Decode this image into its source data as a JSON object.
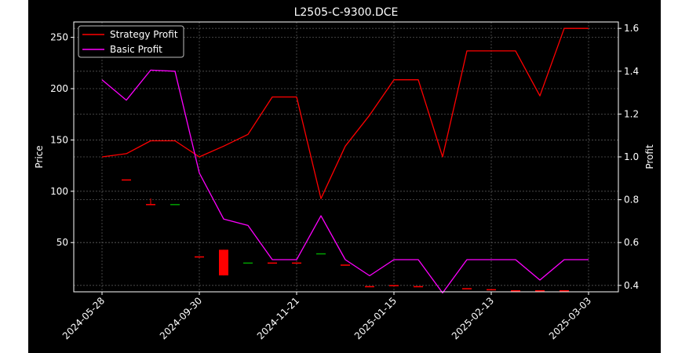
{
  "chart_data": {
    "type": "line+candlestick",
    "title": "L2505-C-9300.DCE",
    "xlabel": "",
    "ylabel_left": "Price",
    "ylabel_right": "Profit",
    "x_tick_labels": [
      "2024-05-28",
      "2024-09-30",
      "2024-11-21",
      "2025-01-15",
      "2025-02-13",
      "2025-03-03"
    ],
    "y_left_ticks": [
      50,
      100,
      150,
      200,
      250
    ],
    "y_right_ticks": [
      0.4,
      0.6,
      0.8,
      1.0,
      1.2,
      1.4,
      1.6
    ],
    "ylim_left": [
      2,
      265
    ],
    "ylim_right": [
      0.37,
      1.63
    ],
    "grid": true,
    "legend_position": "top-left",
    "n_points": 21,
    "x_tick_indices": [
      0,
      4,
      8,
      12,
      16,
      20
    ],
    "series": [
      {
        "name": "Strategy Profit",
        "color": "#ff0000",
        "axis": "right",
        "values": [
          1.0,
          1.015,
          1.075,
          1.075,
          1.0,
          1.05,
          1.105,
          1.28,
          1.28,
          0.805,
          1.05,
          1.195,
          1.36,
          1.36,
          1.0,
          1.495,
          1.495,
          1.495,
          1.285,
          1.6,
          1.6
        ]
      },
      {
        "name": "Basic Profit",
        "color": "#ff00ff",
        "axis": "right",
        "values": [
          1.36,
          1.265,
          1.405,
          1.4,
          0.925,
          0.71,
          0.68,
          0.52,
          0.52,
          0.725,
          0.52,
          0.445,
          0.52,
          0.52,
          0.365,
          0.52,
          0.52,
          0.52,
          0.425,
          0.52,
          0.52
        ]
      }
    ],
    "candles": [
      {
        "i": 1,
        "open": 111,
        "high": 111,
        "low": 111,
        "close": 111,
        "color": "#ff0000"
      },
      {
        "i": 2,
        "open": 87,
        "high": 93,
        "low": 87,
        "close": 87,
        "color": "#ff0000"
      },
      {
        "i": 3,
        "open": 87,
        "high": 87,
        "low": 87,
        "close": 87,
        "color": "#00a000"
      },
      {
        "i": 4,
        "open": 36,
        "high": 36,
        "low": 36,
        "close": 36,
        "color": "#ff0000"
      },
      {
        "i": 5,
        "open": 43,
        "high": 43,
        "low": 18,
        "close": 18,
        "color": "#ff0000"
      },
      {
        "i": 6,
        "open": 30,
        "high": 30,
        "low": 30,
        "close": 30,
        "color": "#00a000"
      },
      {
        "i": 7,
        "open": 30,
        "high": 30,
        "low": 30,
        "close": 30,
        "color": "#ff0000"
      },
      {
        "i": 8,
        "open": 30,
        "high": 30,
        "low": 30,
        "close": 30,
        "color": "#ff0000"
      },
      {
        "i": 9,
        "open": 39,
        "high": 39,
        "low": 39,
        "close": 39,
        "color": "#00a000"
      },
      {
        "i": 10,
        "open": 28,
        "high": 28,
        "low": 28,
        "close": 28,
        "color": "#ff0000"
      },
      {
        "i": 11,
        "open": 7,
        "high": 7,
        "low": 7,
        "close": 7,
        "color": "#ff0000"
      },
      {
        "i": 12,
        "open": 8,
        "high": 8,
        "low": 8,
        "close": 8,
        "color": "#ff0000"
      },
      {
        "i": 13,
        "open": 7,
        "high": 7,
        "low": 7,
        "close": 7,
        "color": "#ff0000"
      },
      {
        "i": 15,
        "open": 5,
        "high": 5,
        "low": 5,
        "close": 5,
        "color": "#ff0000"
      },
      {
        "i": 16,
        "open": 4,
        "high": 4,
        "low": 4,
        "close": 4,
        "color": "#ff0000"
      },
      {
        "i": 17,
        "open": 3,
        "high": 3,
        "low": 3,
        "close": 3,
        "color": "#ff0000"
      },
      {
        "i": 18,
        "open": 3,
        "high": 3,
        "low": 3,
        "close": 3,
        "color": "#ff0000"
      },
      {
        "i": 19,
        "open": 3,
        "high": 3,
        "low": 3,
        "close": 3,
        "color": "#ff0000"
      }
    ]
  }
}
